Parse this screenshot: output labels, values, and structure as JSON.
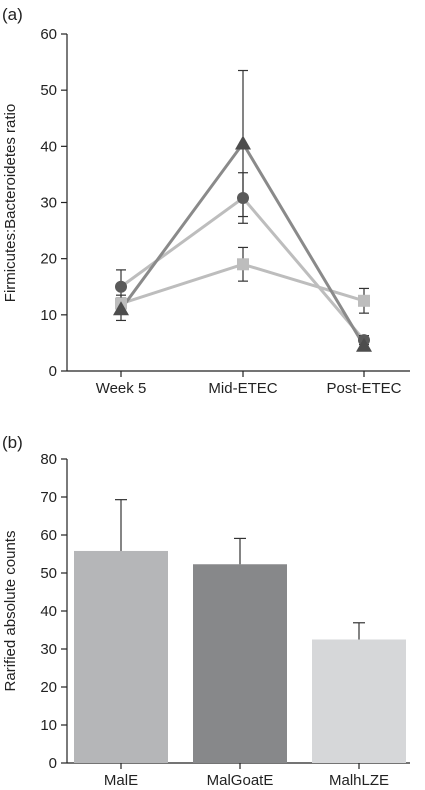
{
  "chart_data": [
    {
      "panel_label": "(a)",
      "type": "line",
      "ylabel": "Firmicutes:Bacteroidetes ratio",
      "xlabel": "",
      "categories": [
        "Week 5",
        "Mid-ETEC",
        "Post-ETEC"
      ],
      "ylim": [
        0,
        60
      ],
      "yticks": [
        0,
        10,
        20,
        30,
        40,
        50,
        60
      ],
      "series": [
        {
          "marker": "triangle",
          "color": "#4d4d4d",
          "line_color": "#8a8a8a",
          "values": [
            11,
            40.5,
            4.5
          ],
          "error": [
            2,
            13,
            0.8
          ]
        },
        {
          "marker": "circle",
          "color": "#5a5a5a",
          "line_color": "#bdbdbd",
          "values": [
            15,
            30.8,
            5.5
          ],
          "error": [
            3,
            4.5,
            0.8
          ]
        },
        {
          "marker": "square",
          "color": "#bdbdbd",
          "line_color": "#bdbdbd",
          "values": [
            12,
            19,
            12.5
          ],
          "error": [
            1.5,
            3,
            2.2
          ]
        }
      ]
    },
    {
      "panel_label": "(b)",
      "type": "bar",
      "ylabel": "Rarified absolute counts",
      "xlabel": "",
      "categories": [
        "MalE",
        "MalGoatE",
        "MalhLZE"
      ],
      "values": [
        55.8,
        52.3,
        32.5
      ],
      "error": [
        13.5,
        6.8,
        4.4
      ],
      "colors": [
        "#b5b6b8",
        "#87888a",
        "#d6d7d9"
      ],
      "ylim": [
        0,
        80
      ],
      "yticks": [
        0,
        10,
        20,
        30,
        40,
        50,
        60,
        70,
        80
      ]
    }
  ]
}
